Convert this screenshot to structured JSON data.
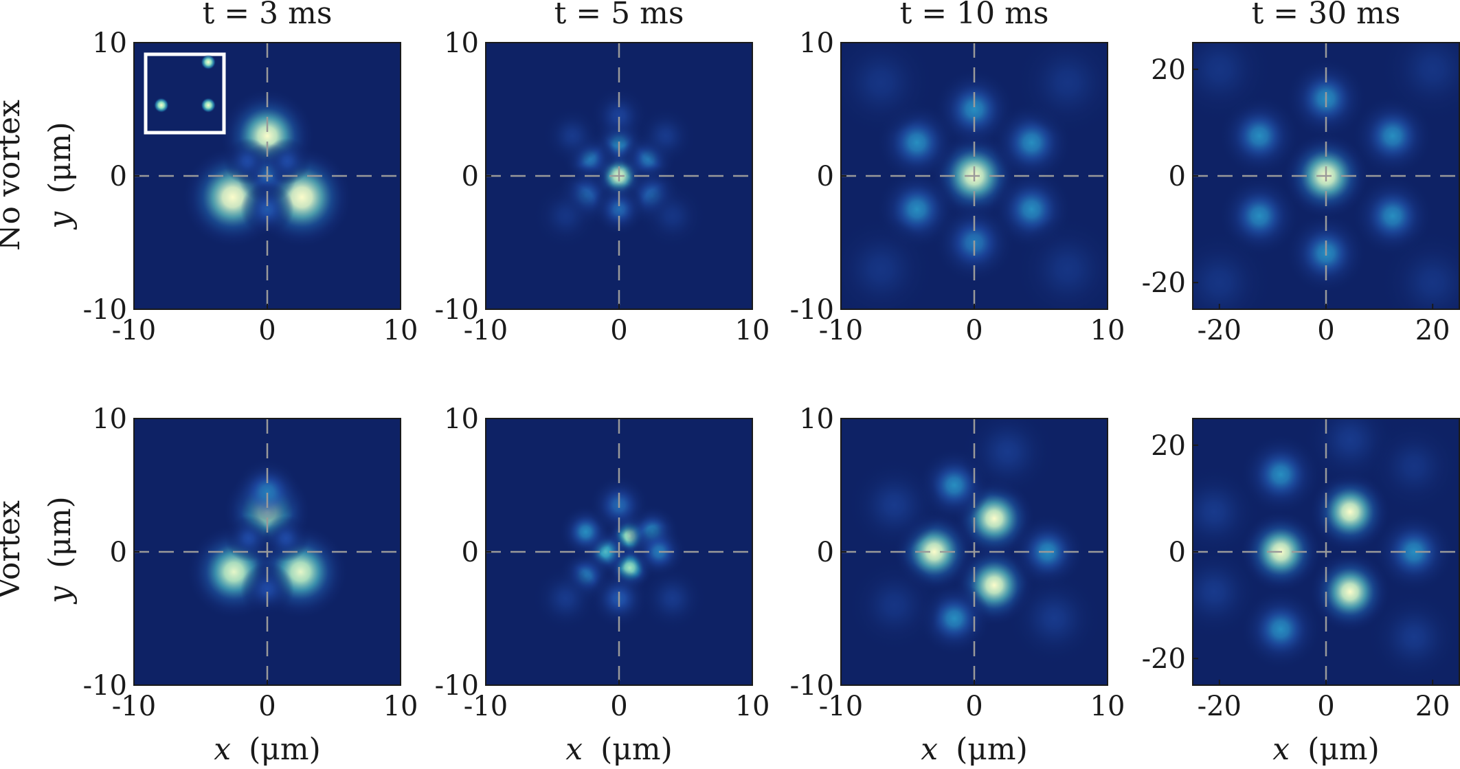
{
  "figure": {
    "column_titles": [
      "t = 3 ms",
      "t = 5 ms",
      "t = 10 ms",
      "t = 30 ms"
    ],
    "row_labels": [
      "No vortex",
      "Vortex"
    ],
    "x_label": {
      "var": "x",
      "unit": "(μm)"
    },
    "y_label": {
      "var": "y",
      "unit": "(μm)"
    }
  },
  "chart_data": {
    "type": "heatmap",
    "colormap": [
      "#0e2265",
      "#1f4aa6",
      "#2a9fc6",
      "#8fe0c0",
      "#fbfccb"
    ],
    "guide_lines": "dashed gray crosshair at x = 0 and y = 0",
    "panels": [
      {
        "row": "No vortex",
        "title": "t = 3 ms",
        "xlim": [
          -10,
          10
        ],
        "ylim": [
          -10,
          10
        ],
        "xticks": [
          -10,
          0,
          10
        ],
        "yticks": [
          -10,
          0,
          10
        ],
        "x_tick_labels": [
          "-10",
          "0",
          "10"
        ],
        "y_tick_labels": [
          "-10",
          "0",
          "10"
        ],
        "inset": {
          "description": "initial three-well configuration",
          "spots": [
            [
              0.5,
              0.8
            ],
            [
              -0.5,
              -0.3
            ],
            [
              0.5,
              -0.3
            ]
          ]
        },
        "peaks": [
          {
            "x": 0,
            "y": 3,
            "amp": 1.0,
            "sigma": 1.4
          },
          {
            "x": -2.6,
            "y": -1.6,
            "amp": 1.05,
            "sigma": 1.5
          },
          {
            "x": 2.6,
            "y": -1.6,
            "amp": 1.05,
            "sigma": 1.5
          },
          {
            "x": 0,
            "y": 0.2,
            "amp": 0.35,
            "sigma": 0.9
          },
          {
            "x": -1.5,
            "y": 1.1,
            "amp": 0.25,
            "sigma": 0.7
          },
          {
            "x": 1.5,
            "y": 1.1,
            "amp": 0.25,
            "sigma": 0.7
          },
          {
            "x": 0,
            "y": -2.5,
            "amp": 0.3,
            "sigma": 0.8
          }
        ]
      },
      {
        "row": "No vortex",
        "title": "t = 5 ms",
        "xlim": [
          -10,
          10
        ],
        "ylim": [
          -10,
          10
        ],
        "xticks": [
          -10,
          0,
          10
        ],
        "yticks": [
          -10,
          0,
          10
        ],
        "x_tick_labels": [
          "-10",
          "0",
          "10"
        ],
        "y_tick_labels": [
          "-10",
          "0",
          "10"
        ],
        "peaks": [
          {
            "x": 0,
            "y": 0,
            "amp": 0.95,
            "sigma": 0.8
          },
          {
            "x": 0,
            "y": 2.5,
            "amp": 0.45,
            "sigma": 0.8
          },
          {
            "x": -2.2,
            "y": 1.3,
            "amp": 0.4,
            "sigma": 0.8
          },
          {
            "x": 2.2,
            "y": 1.3,
            "amp": 0.4,
            "sigma": 0.8
          },
          {
            "x": -2.5,
            "y": -1.5,
            "amp": 0.35,
            "sigma": 0.9
          },
          {
            "x": 2.5,
            "y": -1.5,
            "amp": 0.35,
            "sigma": 0.9
          },
          {
            "x": 0,
            "y": -2.5,
            "amp": 0.35,
            "sigma": 0.8
          },
          {
            "x": 0,
            "y": 4.5,
            "amp": 0.2,
            "sigma": 0.9
          },
          {
            "x": -3.5,
            "y": 3.0,
            "amp": 0.15,
            "sigma": 0.9
          },
          {
            "x": 3.5,
            "y": 3.0,
            "amp": 0.15,
            "sigma": 0.9
          },
          {
            "x": -4.0,
            "y": -3.0,
            "amp": 0.12,
            "sigma": 1.0
          },
          {
            "x": 4.0,
            "y": -3.0,
            "amp": 0.12,
            "sigma": 1.0
          }
        ]
      },
      {
        "row": "No vortex",
        "title": "t = 10 ms",
        "xlim": [
          -10,
          10
        ],
        "ylim": [
          -10,
          10
        ],
        "xticks": [
          -10,
          0,
          10
        ],
        "yticks": [
          -10,
          0,
          10
        ],
        "x_tick_labels": [
          "-10",
          "0",
          "10"
        ],
        "y_tick_labels": [
          "-10",
          "0",
          "10"
        ],
        "peaks": [
          {
            "x": 0,
            "y": 0,
            "amp": 1.0,
            "sigma": 1.3
          },
          {
            "x": 0,
            "y": 5,
            "amp": 0.45,
            "sigma": 1.2
          },
          {
            "x": -4.3,
            "y": 2.5,
            "amp": 0.45,
            "sigma": 1.2
          },
          {
            "x": 4.3,
            "y": 2.5,
            "amp": 0.45,
            "sigma": 1.2
          },
          {
            "x": -4.3,
            "y": -2.5,
            "amp": 0.45,
            "sigma": 1.2
          },
          {
            "x": 4.3,
            "y": -2.5,
            "amp": 0.45,
            "sigma": 1.2
          },
          {
            "x": 0,
            "y": -5,
            "amp": 0.4,
            "sigma": 1.2
          },
          {
            "x": -7,
            "y": 7,
            "amp": 0.12,
            "sigma": 1.6
          },
          {
            "x": 7,
            "y": 7,
            "amp": 0.12,
            "sigma": 1.6
          },
          {
            "x": -7,
            "y": -7,
            "amp": 0.12,
            "sigma": 1.6
          },
          {
            "x": 7,
            "y": -7,
            "amp": 0.12,
            "sigma": 1.6
          }
        ]
      },
      {
        "row": "No vortex",
        "title": "t = 30 ms",
        "xlim": [
          -25,
          25
        ],
        "ylim": [
          -25,
          25
        ],
        "xticks": [
          -20,
          0,
          20
        ],
        "yticks": [
          -20,
          0,
          20
        ],
        "x_tick_labels": [
          "-20",
          "0",
          "20"
        ],
        "y_tick_labels": [
          "-20",
          "0",
          "20"
        ],
        "peaks": [
          {
            "x": 0,
            "y": 0,
            "amp": 1.0,
            "sigma": 3.2
          },
          {
            "x": 0,
            "y": 14.5,
            "amp": 0.45,
            "sigma": 3.0
          },
          {
            "x": -12.5,
            "y": 7.5,
            "amp": 0.45,
            "sigma": 3.0
          },
          {
            "x": 12.5,
            "y": 7.5,
            "amp": 0.45,
            "sigma": 3.0
          },
          {
            "x": -12.5,
            "y": -7.5,
            "amp": 0.45,
            "sigma": 3.0
          },
          {
            "x": 12.5,
            "y": -7.5,
            "amp": 0.45,
            "sigma": 3.0
          },
          {
            "x": 0,
            "y": -14.5,
            "amp": 0.45,
            "sigma": 3.0
          },
          {
            "x": -20,
            "y": 20,
            "amp": 0.12,
            "sigma": 4.0
          },
          {
            "x": 20,
            "y": 20,
            "amp": 0.12,
            "sigma": 4.0
          },
          {
            "x": -20,
            "y": -20,
            "amp": 0.12,
            "sigma": 4.0
          },
          {
            "x": 20,
            "y": -20,
            "amp": 0.12,
            "sigma": 4.0
          }
        ]
      },
      {
        "row": "Vortex",
        "title": "t = 3 ms",
        "xlim": [
          -10,
          10
        ],
        "ylim": [
          -10,
          10
        ],
        "xticks": [
          -10,
          0,
          10
        ],
        "yticks": [
          -10,
          0,
          10
        ],
        "x_tick_labels": [
          "-10",
          "0",
          "10"
        ],
        "y_tick_labels": [
          "-10",
          "0",
          "10"
        ],
        "peaks": [
          {
            "x": 0,
            "y": 3,
            "amp": 0.9,
            "sigma": 1.3
          },
          {
            "x": 0,
            "y": 4.5,
            "amp": 0.4,
            "sigma": 1.0
          },
          {
            "x": -2.5,
            "y": -1.5,
            "amp": 0.95,
            "sigma": 1.4
          },
          {
            "x": 2.5,
            "y": -1.5,
            "amp": 0.95,
            "sigma": 1.4
          },
          {
            "x": -1.4,
            "y": 1.0,
            "amp": 0.25,
            "sigma": 0.7
          },
          {
            "x": 1.4,
            "y": 1.0,
            "amp": 0.25,
            "sigma": 0.7
          },
          {
            "x": 0,
            "y": -2.8,
            "amp": 0.25,
            "sigma": 0.8
          }
        ]
      },
      {
        "row": "Vortex",
        "title": "t = 5 ms",
        "xlim": [
          -10,
          10
        ],
        "ylim": [
          -10,
          10
        ],
        "xticks": [
          -10,
          0,
          10
        ],
        "yticks": [
          -10,
          0,
          10
        ],
        "x_tick_labels": [
          "-10",
          "0",
          "10"
        ],
        "y_tick_labels": [
          "-10",
          "0",
          "10"
        ],
        "peaks": [
          {
            "x": 0.8,
            "y": 1.2,
            "amp": 0.85,
            "sigma": 0.7
          },
          {
            "x": 0.8,
            "y": -1.2,
            "amp": 0.8,
            "sigma": 0.7
          },
          {
            "x": -1.0,
            "y": 0,
            "amp": 0.6,
            "sigma": 0.7
          },
          {
            "x": -2.5,
            "y": 1.5,
            "amp": 0.45,
            "sigma": 0.8
          },
          {
            "x": 2.5,
            "y": 1.5,
            "amp": 0.45,
            "sigma": 0.8
          },
          {
            "x": -2.5,
            "y": -1.8,
            "amp": 0.4,
            "sigma": 0.8
          },
          {
            "x": 3.0,
            "y": 0,
            "amp": 0.4,
            "sigma": 0.8
          },
          {
            "x": 0,
            "y": 3.5,
            "amp": 0.35,
            "sigma": 0.9
          },
          {
            "x": 0,
            "y": -3.5,
            "amp": 0.3,
            "sigma": 0.9
          },
          {
            "x": -4,
            "y": -3.5,
            "amp": 0.15,
            "sigma": 1.0
          },
          {
            "x": 4,
            "y": -3.5,
            "amp": 0.15,
            "sigma": 1.0
          }
        ]
      },
      {
        "row": "Vortex",
        "title": "t = 10 ms",
        "xlim": [
          -10,
          10
        ],
        "ylim": [
          -10,
          10
        ],
        "xticks": [
          -10,
          0,
          10
        ],
        "yticks": [
          -10,
          0,
          10
        ],
        "x_tick_labels": [
          "-10",
          "0",
          "10"
        ],
        "y_tick_labels": [
          "-10",
          "0",
          "10"
        ],
        "peaks": [
          {
            "x": 1.5,
            "y": 2.5,
            "amp": 1.0,
            "sigma": 1.2
          },
          {
            "x": -3.0,
            "y": 0,
            "amp": 1.0,
            "sigma": 1.2
          },
          {
            "x": 1.5,
            "y": -2.5,
            "amp": 1.0,
            "sigma": 1.2
          },
          {
            "x": -1.5,
            "y": 5.0,
            "amp": 0.45,
            "sigma": 1.1
          },
          {
            "x": 5.5,
            "y": 0,
            "amp": 0.45,
            "sigma": 1.1
          },
          {
            "x": -1.5,
            "y": -5.0,
            "amp": 0.45,
            "sigma": 1.1
          },
          {
            "x": 2.5,
            "y": 7.5,
            "amp": 0.15,
            "sigma": 1.4
          },
          {
            "x": -6,
            "y": 3.5,
            "amp": 0.15,
            "sigma": 1.4
          },
          {
            "x": 6,
            "y": -5,
            "amp": 0.15,
            "sigma": 1.4
          },
          {
            "x": -6,
            "y": -4,
            "amp": 0.12,
            "sigma": 1.4
          }
        ]
      },
      {
        "row": "Vortex",
        "title": "t = 30 ms",
        "xlim": [
          -25,
          25
        ],
        "ylim": [
          -25,
          25
        ],
        "xticks": [
          -20,
          0,
          20
        ],
        "yticks": [
          -20,
          0,
          20
        ],
        "x_tick_labels": [
          "-20",
          "0",
          "20"
        ],
        "y_tick_labels": [
          "-20",
          "0",
          "20"
        ],
        "peaks": [
          {
            "x": 4.5,
            "y": 7.5,
            "amp": 1.0,
            "sigma": 3.0
          },
          {
            "x": -8.5,
            "y": 0,
            "amp": 1.0,
            "sigma": 3.0
          },
          {
            "x": 4.5,
            "y": -7.5,
            "amp": 1.0,
            "sigma": 3.0
          },
          {
            "x": -8.5,
            "y": 14.5,
            "amp": 0.45,
            "sigma": 3.0
          },
          {
            "x": 16.5,
            "y": 0,
            "amp": 0.45,
            "sigma": 3.0
          },
          {
            "x": -8.5,
            "y": -14.5,
            "amp": 0.45,
            "sigma": 3.0
          },
          {
            "x": 4.5,
            "y": 21,
            "amp": 0.15,
            "sigma": 3.5
          },
          {
            "x": -21,
            "y": 7.5,
            "amp": 0.15,
            "sigma": 3.5
          },
          {
            "x": -21,
            "y": -7.5,
            "amp": 0.15,
            "sigma": 3.5
          },
          {
            "x": 16.5,
            "y": -16,
            "amp": 0.15,
            "sigma": 3.5
          },
          {
            "x": 16.5,
            "y": 16,
            "amp": 0.12,
            "sigma": 3.5
          }
        ]
      }
    ]
  }
}
